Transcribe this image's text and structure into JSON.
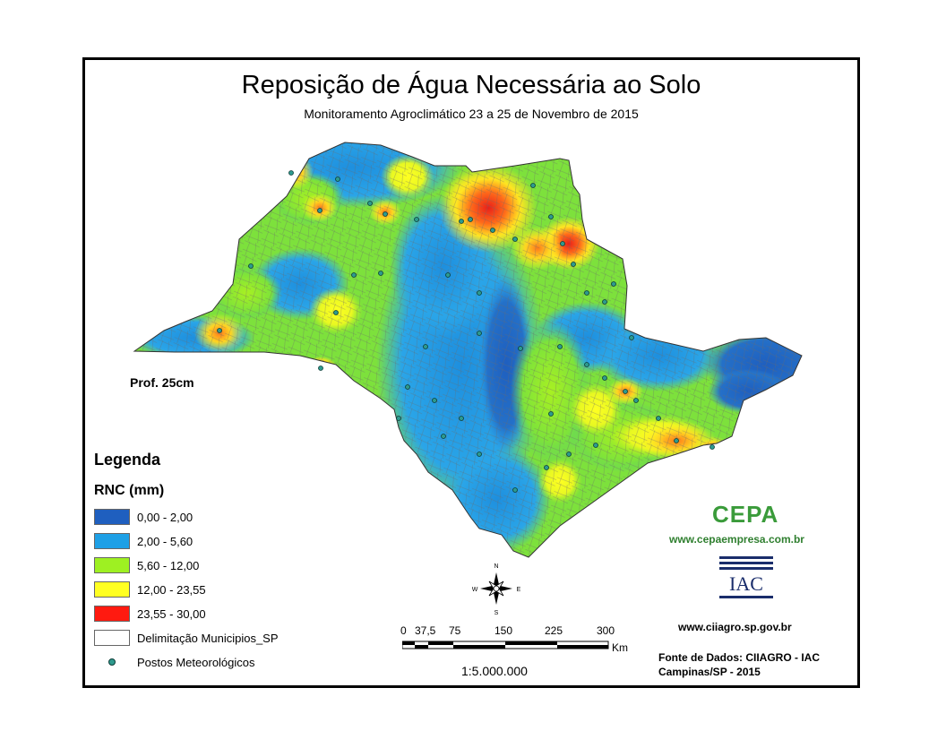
{
  "title": "Reposição de Água Necessária ao Solo",
  "subtitle": "Monitoramento Agroclimático 23 a 25 de Novembro de 2015",
  "depth_label": "Prof. 25cm",
  "legend": {
    "title": "Legenda",
    "subtitle": "RNC (mm)",
    "classes": [
      {
        "label": "0,00 - 2,00",
        "color": "#1f5fbf"
      },
      {
        "label": "2,00 - 5,60",
        "color": "#1ea0e6"
      },
      {
        "label": "5,60 - 12,00",
        "color": "#9ef022"
      },
      {
        "label": "12,00 - 23,55",
        "color": "#ffff22"
      },
      {
        "label": "23,55 - 30,00",
        "color": "#ff1a10"
      }
    ],
    "municipal_label": "Delimitação Municipios_SP",
    "stations_label": "Postos Meteorológicos"
  },
  "compass": {
    "n": "N",
    "s": "S",
    "e": "E",
    "w": "W"
  },
  "scale_bar": {
    "ticks": [
      "0",
      "37,5",
      "75",
      "150",
      "225",
      "300"
    ],
    "unit": "Km",
    "ratio": "1:5.000.000"
  },
  "cepa": {
    "logo_text": "CEPA",
    "url": "www.cepaempresa.com.br"
  },
  "iac": {
    "logo_text": "IAC",
    "url": "www.ciiagro.sp.gov.br"
  },
  "source": {
    "line1": "Fonte de Dados: CIIAGRO - IAC",
    "line2": "Campinas/SP - 2015"
  }
}
